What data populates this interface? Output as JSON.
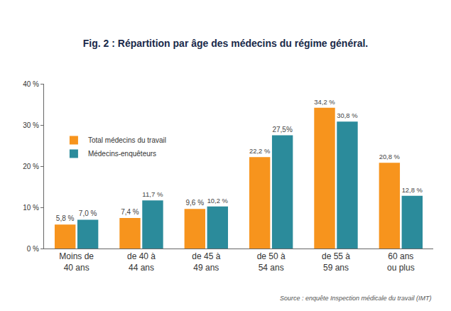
{
  "chart_data": {
    "type": "bar",
    "title": "Fig. 2 : Répartition par âge des médecins du régime général.",
    "categories": [
      "Moins de 40 ans",
      "de 40 à 44 ans",
      "de 45 à 49 ans",
      "de 50 à 54 ans",
      "de 55 à 59 ans",
      "60 ans ou plus"
    ],
    "series": [
      {
        "name": "Total médecins du travail",
        "color": "#f7941d",
        "values": [
          5.8,
          7.4,
          9.6,
          22.2,
          34.2,
          20.8
        ],
        "value_labels": [
          "5,8 %",
          "7,4 %",
          "9,6 %",
          "22,2 %",
          "34,2 %",
          "20,8 %"
        ]
      },
      {
        "name": "Médecins-enquêteurs",
        "color": "#2b8b9b",
        "values": [
          7.0,
          11.7,
          10.2,
          27.5,
          30.8,
          12.8
        ],
        "value_labels": [
          "7,0 %",
          "11,7 %",
          "10,2 %",
          "27,5%",
          "30,8 %",
          "12,8 %"
        ]
      }
    ],
    "ylim": [
      0,
      40
    ],
    "yticks": [
      {
        "value": 0,
        "label": "0 %"
      },
      {
        "value": 10,
        "label": "10 %"
      },
      {
        "value": 20,
        "label": "20 %"
      },
      {
        "value": 30,
        "label": "30 %"
      },
      {
        "value": 40,
        "label": "40 %"
      }
    ],
    "grid": false,
    "legend": "upper left",
    "data_labels": true,
    "annotations": [
      "Source : enquête Inspection médicale du travail (IMT)"
    ]
  }
}
